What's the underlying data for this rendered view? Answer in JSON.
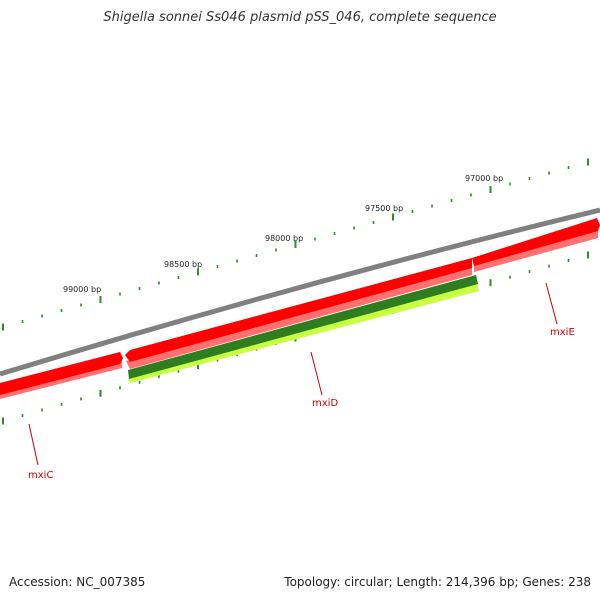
{
  "title": "Shigella sonnei Ss046 plasmid pSS_046, complete sequence",
  "footer": {
    "accession": "Accession: NC_007385",
    "stats": "Topology: circular; Length: 214,396 bp; Genes: 238"
  },
  "colors": {
    "backbone": "#808080",
    "gene_red": "#ff0000",
    "gene_red_shadow": "#ff7070",
    "gene_dark_green": "#2e7d1e",
    "gene_light_green": "#c8ff40",
    "tick": "#2e8b2e",
    "label_line": "#cc0000"
  },
  "position_labels": [
    "99000 bp",
    "98500 bp",
    "98000 bp",
    "97500 bp",
    "97000 bp"
  ],
  "genes": [
    {
      "name": "mxiC",
      "color": "red"
    },
    {
      "name": "mxiD",
      "color": "green"
    },
    {
      "name": "mxiE",
      "color": "red"
    }
  ]
}
